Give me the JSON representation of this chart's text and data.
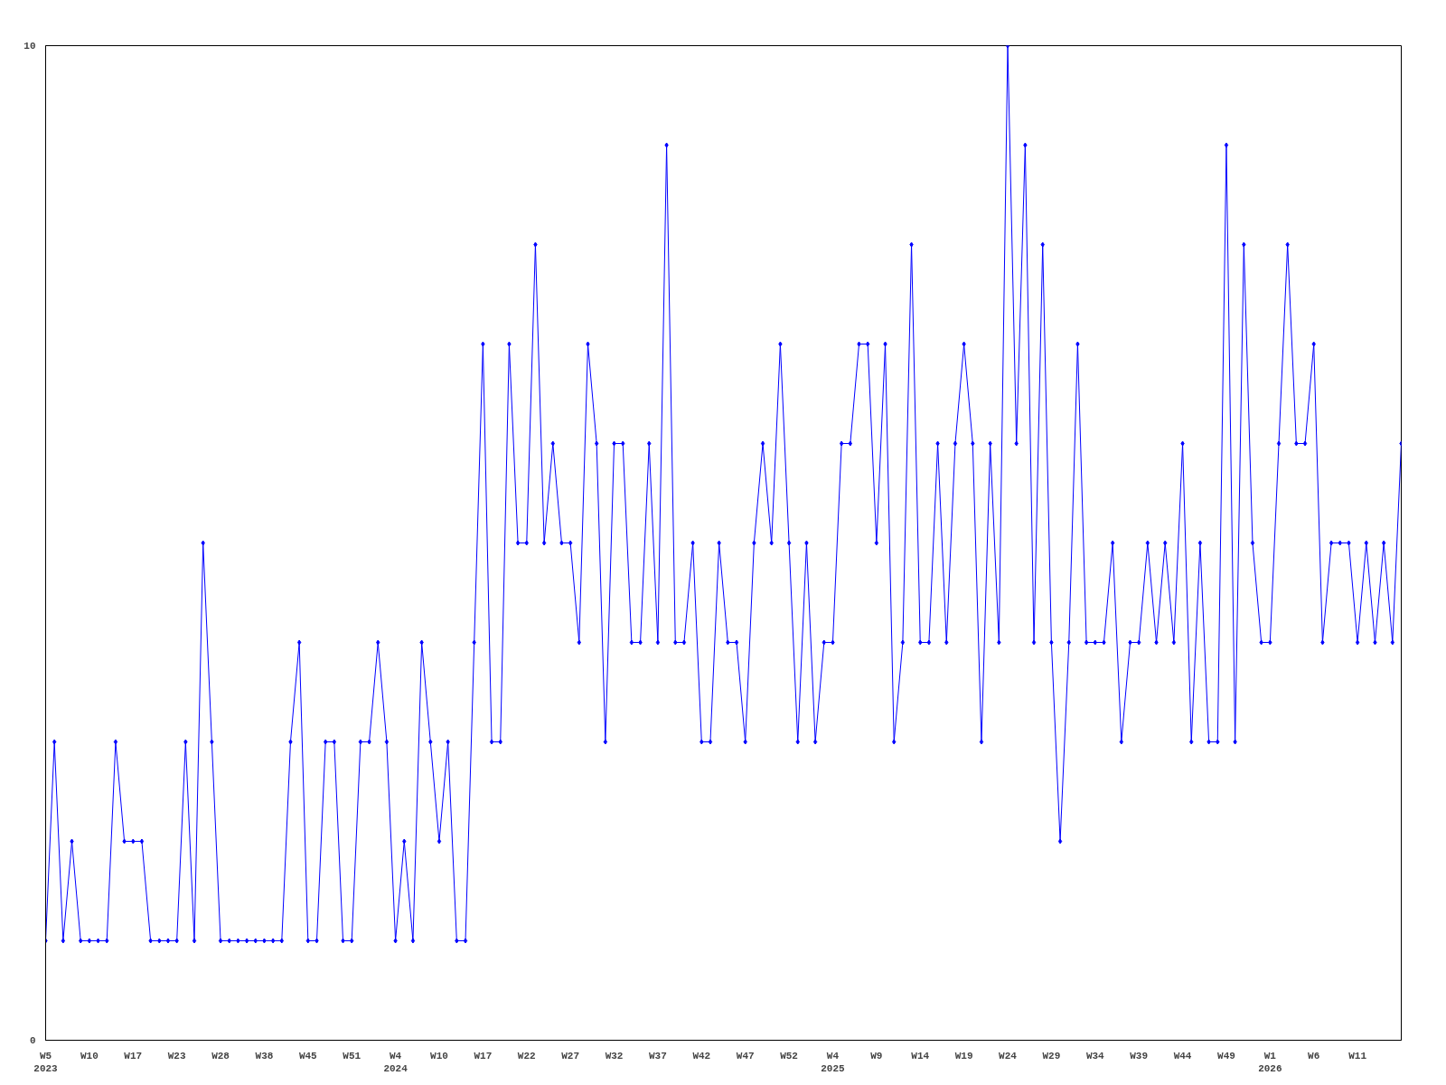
{
  "chart_data": {
    "type": "line",
    "categories": [
      "W5\n2023",
      null,
      null,
      null,
      null,
      "W10",
      null,
      null,
      null,
      null,
      "W17",
      null,
      null,
      null,
      null,
      "W23",
      null,
      null,
      null,
      null,
      "W28",
      null,
      null,
      null,
      null,
      "W38",
      null,
      null,
      null,
      null,
      "W45",
      null,
      null,
      null,
      null,
      "W51",
      null,
      null,
      null,
      null,
      "W4\n2024",
      null,
      null,
      null,
      null,
      "W10",
      null,
      null,
      null,
      null,
      "W17",
      null,
      null,
      null,
      null,
      "W22",
      null,
      null,
      null,
      null,
      "W27",
      null,
      null,
      null,
      null,
      "W32",
      null,
      null,
      null,
      null,
      "W37",
      null,
      null,
      null,
      null,
      "W42",
      null,
      null,
      null,
      null,
      "W47",
      null,
      null,
      null,
      null,
      "W52",
      null,
      null,
      null,
      null,
      "W4\n2025",
      null,
      null,
      null,
      null,
      "W9",
      null,
      null,
      null,
      null,
      "W14",
      null,
      null,
      null,
      null,
      "W19",
      null,
      null,
      null,
      null,
      "W24",
      null,
      null,
      null,
      null,
      "W29",
      null,
      null,
      null,
      null,
      "W34",
      null,
      null,
      null,
      null,
      "W39",
      null,
      null,
      null,
      null,
      "W44",
      null,
      null,
      null,
      null,
      "W49",
      null,
      null,
      null,
      null,
      "W1\n2026",
      null,
      null,
      null,
      null,
      "W6",
      null,
      null,
      null,
      null,
      "W11",
      null,
      null,
      null,
      null,
      null
    ],
    "series": [
      {
        "color": "#0000ff",
        "values": [
          1,
          3,
          1,
          2,
          1,
          1,
          1,
          1,
          3,
          2,
          2,
          2,
          1,
          1,
          1,
          1,
          3,
          1,
          5,
          3,
          1,
          1,
          1,
          1,
          1,
          1,
          1,
          1,
          3,
          4,
          1,
          1,
          3,
          3,
          1,
          1,
          3,
          3,
          4,
          3,
          1,
          2,
          1,
          4,
          3,
          2,
          3,
          1,
          1,
          4,
          7,
          3,
          3,
          7,
          5,
          5,
          8,
          5,
          6,
          5,
          5,
          4,
          7,
          6,
          3,
          6,
          6,
          4,
          4,
          6,
          4,
          9,
          4,
          4,
          5,
          3,
          3,
          5,
          4,
          4,
          3,
          5,
          6,
          5,
          7,
          5,
          3,
          5,
          3,
          4,
          4,
          6,
          6,
          7,
          7,
          5,
          7,
          3,
          4,
          8,
          4,
          4,
          6,
          4,
          6,
          7,
          6,
          3,
          6,
          4,
          10,
          6,
          9,
          4,
          8,
          4,
          2,
          4,
          7,
          4,
          4,
          4,
          5,
          3,
          4,
          4,
          5,
          4,
          5,
          4,
          6,
          3,
          5,
          3,
          3,
          9,
          3,
          8,
          5,
          4,
          4,
          6,
          8,
          6,
          6,
          7,
          4,
          5,
          5,
          5,
          4,
          5,
          4,
          5,
          4,
          6
        ]
      }
    ],
    "ylim": [
      0,
      10
    ],
    "yticks": [
      0,
      10
    ],
    "grid": false,
    "marker": "diamond",
    "line_style": "solid"
  }
}
